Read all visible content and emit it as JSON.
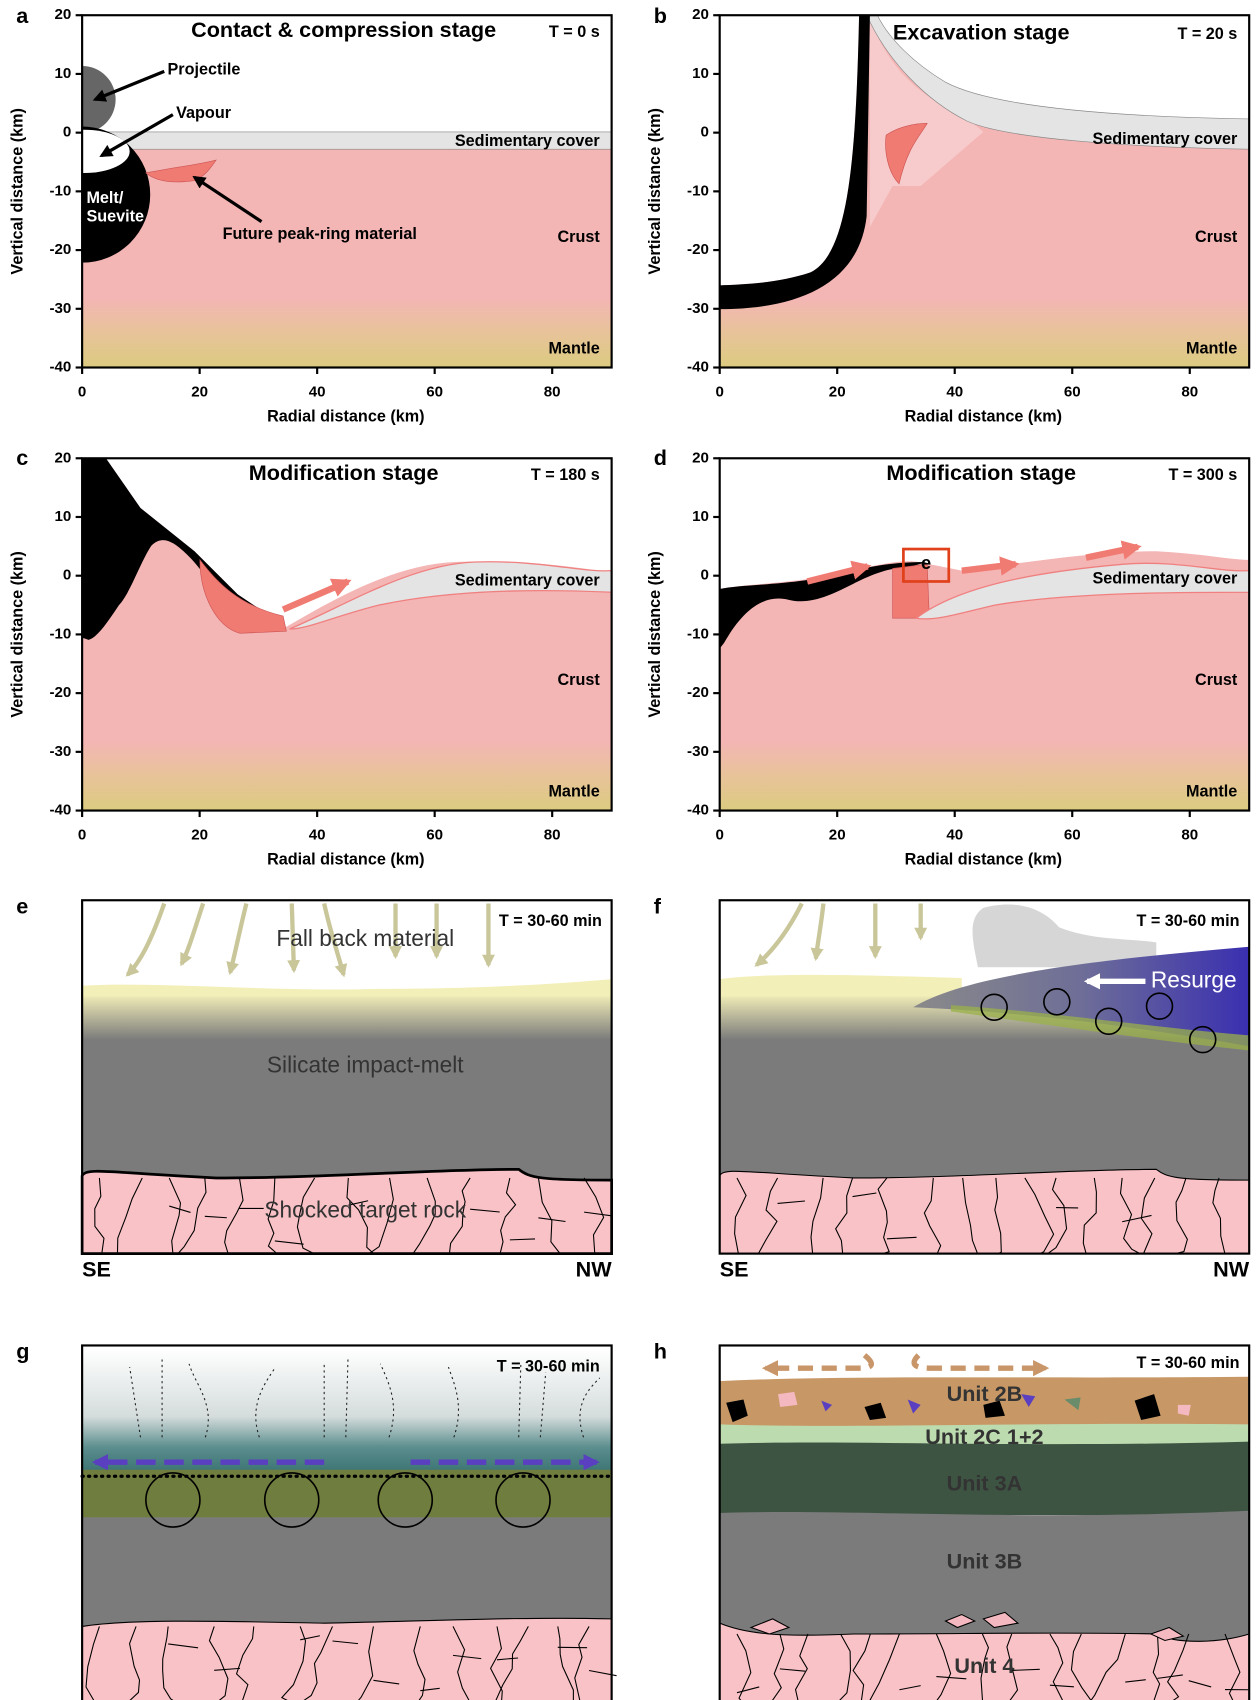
{
  "panels": [
    {
      "letter": "a",
      "title": "Contact & compression stage",
      "time": "T = 0 s",
      "xlabel": "Radial distance (km)",
      "ylabel": "Vertical distance (km)",
      "xticks": [
        0,
        20,
        40,
        60,
        80
      ],
      "yticks": [
        20,
        10,
        0,
        -10,
        -20,
        -30,
        -40
      ],
      "labels": [
        "Projectile",
        "Vapour",
        "Melt/",
        "Suevite",
        "Future peak-ring material",
        "Sedimentary cover",
        "Crust",
        "Mantle"
      ]
    },
    {
      "letter": "b",
      "title": "Excavation stage",
      "time": "T = 20 s",
      "xlabel": "Radial distance (km)",
      "ylabel": "Vertical distance (km)",
      "xticks": [
        0,
        20,
        40,
        60,
        80
      ],
      "yticks": [
        20,
        10,
        0,
        -10,
        -20,
        -30,
        -40
      ],
      "labels": [
        "Sedimentary cover",
        "Crust",
        "Mantle"
      ]
    },
    {
      "letter": "c",
      "title": "Modification stage",
      "time": "T = 180 s",
      "xlabel": "Radial distance (km)",
      "ylabel": "Vertical distance (km)",
      "xticks": [
        0,
        20,
        40,
        60,
        80
      ],
      "yticks": [
        20,
        10,
        0,
        -10,
        -20,
        -30,
        -40
      ],
      "labels": [
        "Sedimentary cover",
        "Crust",
        "Mantle"
      ]
    },
    {
      "letter": "d",
      "title": "Modification stage",
      "time": "T = 300 s",
      "xlabel": "Radial distance (km)",
      "ylabel": "Vertical distance (km)",
      "xticks": [
        0,
        20,
        40,
        60,
        80
      ],
      "yticks": [
        20,
        10,
        0,
        -10,
        -20,
        -30,
        -40
      ],
      "labels": [
        "e",
        "Sedimentary cover",
        "Crust",
        "Mantle"
      ]
    },
    {
      "letter": "e",
      "time": "T = 30-60 min",
      "labels": [
        "Fall back material",
        "Silicate impact-melt",
        "Shocked target rock"
      ],
      "directions": [
        "SE",
        "NW"
      ]
    },
    {
      "letter": "f",
      "time": "T = 30-60 min",
      "labels": [
        "Resurge"
      ],
      "directions": [
        "SE",
        "NW"
      ]
    },
    {
      "letter": "g",
      "time": "T = 30-60 min"
    },
    {
      "letter": "h",
      "time": "T = 30-60 min",
      "labels": [
        "Unit 2B",
        "Unit 2C 1+2",
        "Unit 3A",
        "Unit 3B",
        "Unit 4"
      ]
    }
  ]
}
